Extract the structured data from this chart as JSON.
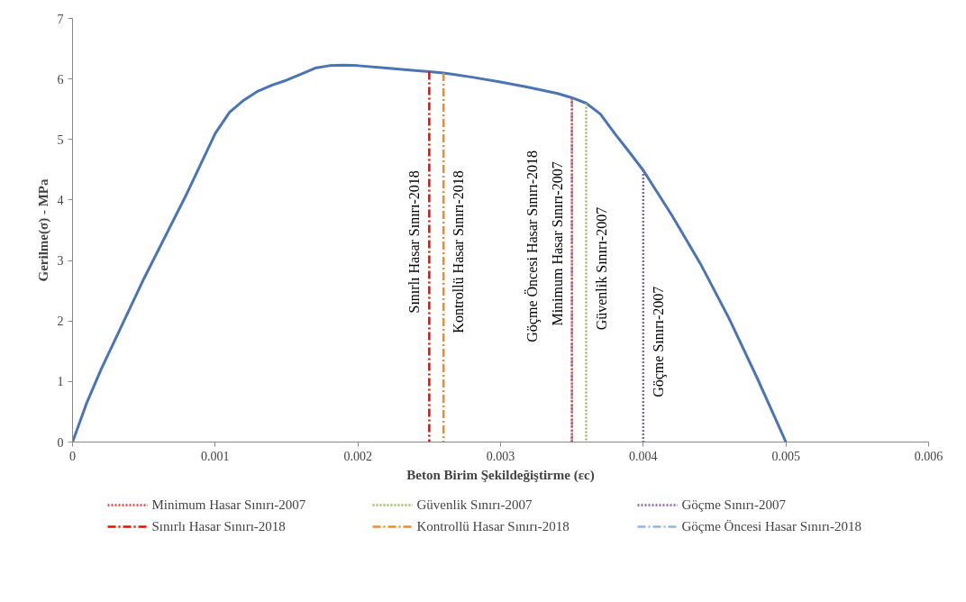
{
  "chart_data": {
    "type": "line",
    "xlabel": "Beton Birim Şekildeğiştirme (εc)",
    "ylabel": "Gerilme(σ) - MPa",
    "xlim": [
      0,
      0.006
    ],
    "ylim": [
      0,
      7
    ],
    "xticks": [
      0,
      0.001,
      0.002,
      0.003,
      0.004,
      0.005,
      0.006
    ],
    "yticks": [
      0,
      1,
      2,
      3,
      4,
      5,
      6,
      7
    ],
    "grid": false,
    "legend": "bottom",
    "marker": "none",
    "series": [
      {
        "color": "#4a74b4",
        "line_style": "solid",
        "x": [
          0,
          0.0001,
          0.0002,
          0.0003,
          0.0005,
          0.0008,
          0.001,
          0.0011,
          0.0012,
          0.0013,
          0.0014,
          0.0015,
          0.0016,
          0.0017,
          0.0018,
          0.0019,
          0.002,
          0.0022,
          0.0024,
          0.0025,
          0.0026,
          0.0028,
          0.003,
          0.0032,
          0.0034,
          0.0035,
          0.0036,
          0.0037,
          0.0038,
          0.0039,
          0.004,
          0.0042,
          0.0044,
          0.0046,
          0.0048,
          0.005
        ],
        "values": [
          0,
          0.65,
          1.2,
          1.7,
          2.7,
          4.1,
          5.1,
          5.45,
          5.65,
          5.8,
          5.9,
          5.98,
          6.08,
          6.18,
          6.22,
          6.23,
          6.22,
          6.18,
          6.14,
          6.12,
          6.1,
          6.03,
          5.95,
          5.86,
          5.76,
          5.69,
          5.6,
          5.42,
          5.1,
          4.8,
          4.49,
          3.75,
          2.95,
          2.05,
          1.05,
          0
        ]
      },
      {
        "name": "Minimum Hasar Sınırı-2007",
        "color": "#e0403a",
        "line_style": "dotted",
        "x": [
          0.0035,
          0.0035
        ],
        "values": [
          5.69,
          0
        ]
      },
      {
        "name": "Güvenlik Sınırı-2007",
        "color": "#9bbb59",
        "line_style": "dotted",
        "x": [
          0.0036,
          0.0036
        ],
        "values": [
          5.6,
          0
        ]
      },
      {
        "name": "Göçme Sınırı-2007",
        "color": "#8064a2",
        "line_style": "dotted",
        "x": [
          0.004,
          0.004
        ],
        "values": [
          4.49,
          0
        ]
      },
      {
        "name": "Sınırlı Hasar Sınırı-2018",
        "color": "#ff0000",
        "line_style": "dashdot",
        "x": [
          0.0025,
          0.0025
        ],
        "values": [
          6.12,
          0
        ]
      },
      {
        "name": "Kontrollü Hasar Sınırı-2018",
        "color": "#f08a2c",
        "line_style": "dashdot",
        "x": [
          0.0026,
          0.0026
        ],
        "values": [
          6.1,
          0
        ]
      },
      {
        "name": "Göçme Öncesi Hasar Sınırı-2018",
        "color": "#95b3d7",
        "line_style": "dashdot",
        "x": [
          0.0035,
          0.0035
        ],
        "values": [
          5.69,
          0
        ]
      }
    ],
    "annotations": [
      {
        "text": "Sınırlı Hasar Sınırı-2018",
        "x": 0.0025,
        "y": 2.13
      },
      {
        "text": "Kontrollü Hasar Sınırı-2018",
        "x": 0.0026,
        "y": 1.8
      },
      {
        "text": "Göçme Öncesi Hasar Sınırı-2018",
        "x": 0.0035,
        "y": 1.65
      },
      {
        "text": "Minimum Hasar Sınırı-2007",
        "x": 0.0035,
        "y": 1.92
      },
      {
        "text": "Güvenlik Sınırı-2007",
        "x": 0.0036,
        "y": 1.85
      },
      {
        "text": "Göçme Sınırı-2007",
        "x": 0.004,
        "y": 0.74
      }
    ]
  }
}
